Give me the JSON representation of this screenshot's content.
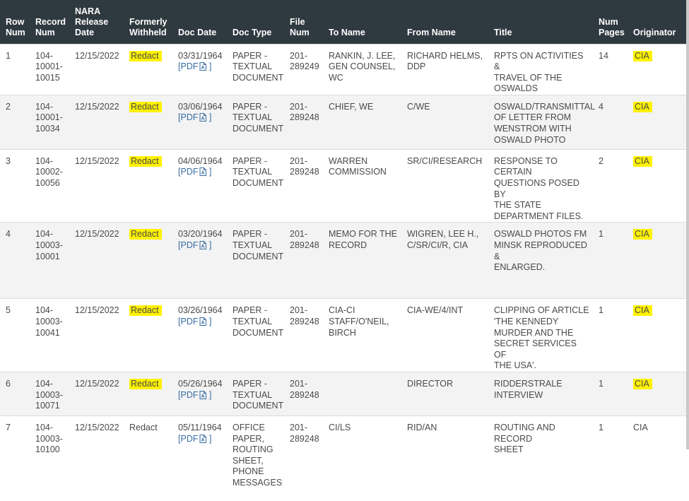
{
  "headers": {
    "row_num": [
      "Row",
      "Num"
    ],
    "record_num": [
      "Record",
      "Num"
    ],
    "nara_release_date": [
      "NARA",
      "Release",
      "Date"
    ],
    "formerly_withheld": [
      "Formerly",
      "Withheld"
    ],
    "doc_date": "Doc Date",
    "doc_type": "Doc Type",
    "file_num": [
      "File",
      "Num"
    ],
    "to_name": "To Name",
    "from_name": "From Name",
    "title": "Title",
    "num_pages": [
      "Num",
      "Pages"
    ],
    "originator": "Originator"
  },
  "colors": {
    "header_bg": "#2f3940",
    "highlight": "#fff200",
    "link": "#3a6ea5",
    "alt_row": "#f3f3f3"
  },
  "rows": [
    {
      "row": "1",
      "record": [
        "104-",
        "10001-",
        "10015"
      ],
      "release": "12/15/2022",
      "withheld": "Redact",
      "withheld_highlight": true,
      "doc_date": "03/31/1964",
      "pdf_label": "PDF",
      "doc_type": [
        "PAPER -",
        "TEXTUAL",
        "DOCUMENT"
      ],
      "file": [
        "201-",
        "289249"
      ],
      "to": [
        "RANKIN, J. LEE,",
        "GEN COUNSEL,",
        "WC"
      ],
      "from": [
        "RICHARD HELMS,",
        "DDP"
      ],
      "title": [
        "RPTS ON ACTIVITIES &",
        "TRAVEL OF THE",
        "OSWALDS"
      ],
      "pages": "14",
      "originator": "CIA",
      "originator_highlight": true
    },
    {
      "row": "2",
      "record": [
        "104-",
        "10001-",
        "10034"
      ],
      "release": "12/15/2022",
      "withheld": "Redact",
      "withheld_highlight": true,
      "doc_date": "03/06/1964",
      "pdf_label": "PDF",
      "doc_type": [
        "PAPER -",
        "TEXTUAL",
        "DOCUMENT"
      ],
      "file": [
        "201-",
        "289248"
      ],
      "to": [
        "CHIEF, WE"
      ],
      "from": [
        "C/WE"
      ],
      "title": [
        "OSWALD/TRANSMITTAL",
        "OF LETTER FROM",
        "WENSTROM WITH",
        "OSWALD PHOTO"
      ],
      "pages": "4",
      "originator": "CIA",
      "originator_highlight": true
    },
    {
      "row": "3",
      "record": [
        "104-",
        "10002-",
        "10056"
      ],
      "release": "12/15/2022",
      "withheld": "Redact",
      "withheld_highlight": true,
      "doc_date": "04/06/1964",
      "pdf_label": "PDF",
      "doc_type": [
        "PAPER -",
        "TEXTUAL",
        "DOCUMENT"
      ],
      "file": [
        "201-",
        "289248"
      ],
      "to": [
        "WARREN",
        "COMMISSION"
      ],
      "from": [
        "SR/CI/RESEARCH"
      ],
      "title": [
        "RESPONSE TO CERTAIN",
        "QUESTIONS POSED BY",
        "THE STATE",
        "DEPARTMENT FILES."
      ],
      "pages": "2",
      "originator": "CIA",
      "originator_highlight": true
    },
    {
      "row": "4",
      "record": [
        "104-",
        "10003-",
        "10001"
      ],
      "release": "12/15/2022",
      "withheld": "Redact",
      "withheld_highlight": true,
      "doc_date": "03/20/1964",
      "pdf_label": "PDF",
      "doc_type": [
        "PAPER -",
        "TEXTUAL",
        "DOCUMENT"
      ],
      "file": [
        "201-",
        "289248"
      ],
      "to": [
        "MEMO FOR THE",
        "RECORD"
      ],
      "from": [
        "WIGREN, LEE H.,",
        "C/SR/CI/R, CIA"
      ],
      "title": [
        "OSWALD PHOTOS FM",
        "MINSK REPRODUCED &",
        "ENLARGED."
      ],
      "pages": "1",
      "originator": "CIA",
      "originator_highlight": true
    },
    {
      "row": "5",
      "record": [
        "104-",
        "10003-",
        "10041"
      ],
      "release": "12/15/2022",
      "withheld": "Redact",
      "withheld_highlight": true,
      "doc_date": "03/26/1964",
      "pdf_label": "PDF",
      "doc_type": [
        "PAPER -",
        "TEXTUAL",
        "DOCUMENT"
      ],
      "file": [
        "201-",
        "289248"
      ],
      "to": [
        "CIA-CI",
        "STAFF/O'NEIL,",
        "BIRCH"
      ],
      "from": [
        "CIA-WE/4/INT"
      ],
      "title": [
        "CLIPPING OF ARTICLE",
        "'THE KENNEDY",
        "MURDER AND THE",
        "SECRET SERVICES OF",
        "THE USA'."
      ],
      "pages": "1",
      "originator": "CIA",
      "originator_highlight": true
    },
    {
      "row": "6",
      "record": [
        "104-",
        "10003-",
        "10071"
      ],
      "release": "12/15/2022",
      "withheld": "Redact",
      "withheld_highlight": true,
      "doc_date": "05/26/1964",
      "pdf_label": "PDF",
      "doc_type": [
        "PAPER -",
        "TEXTUAL",
        "DOCUMENT"
      ],
      "file": [
        "201-",
        "289248"
      ],
      "to": [],
      "from": [
        "DIRECTOR"
      ],
      "title": [
        "RIDDERSTRALE",
        "INTERVIEW"
      ],
      "pages": "1",
      "originator": "CIA",
      "originator_highlight": true
    },
    {
      "row": "7",
      "record": [
        "104-",
        "10003-",
        "10100"
      ],
      "release": "12/15/2022",
      "withheld": "Redact",
      "withheld_highlight": false,
      "doc_date": "05/11/1964",
      "pdf_label": "PDF",
      "doc_type": [
        "OFFICE",
        "PAPER,",
        "ROUTING",
        "SHEET,",
        "PHONE",
        "MESSAGES"
      ],
      "file": [
        "201-",
        "289248"
      ],
      "to": [
        "CI/LS"
      ],
      "from": [
        "RID/AN"
      ],
      "title": [
        "ROUTING AND RECORD",
        "SHEET"
      ],
      "pages": "1",
      "originator": "CIA",
      "originator_highlight": false
    }
  ]
}
